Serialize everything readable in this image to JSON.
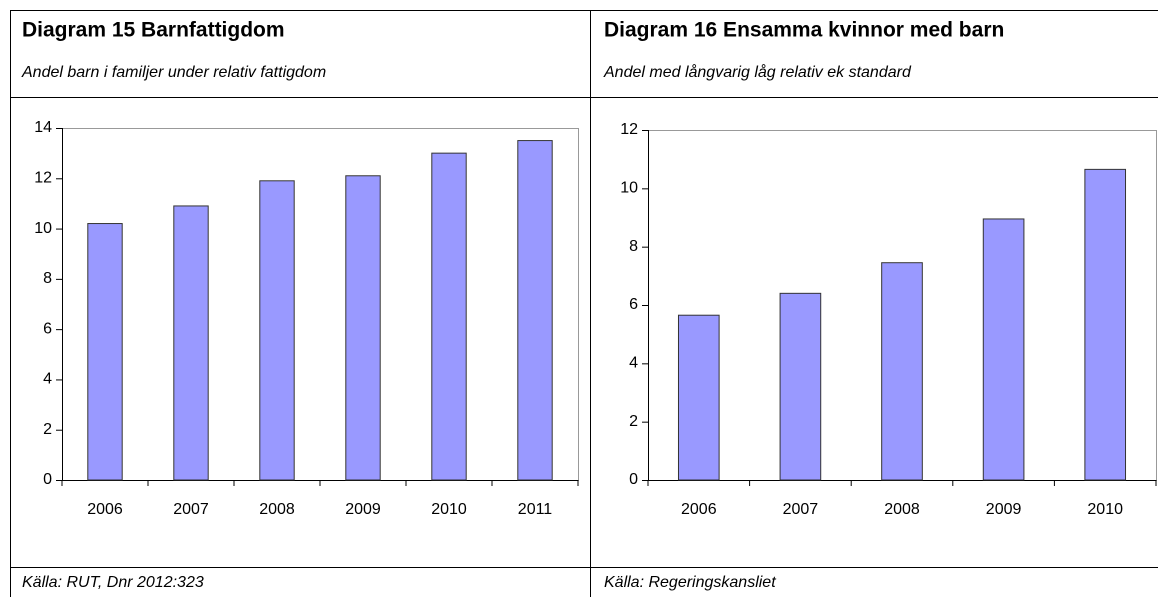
{
  "chart_data": [
    {
      "type": "bar",
      "title": "Diagram 15 Barnfattigdom",
      "subtitle": "Andel barn i familjer under relativ fattigdom",
      "source": "Källa: RUT, Dnr 2012:323",
      "categories": [
        "2006",
        "2007",
        "2008",
        "2009",
        "2010",
        "2011"
      ],
      "values": [
        10.2,
        10.9,
        11.9,
        12.1,
        13.0,
        13.5
      ],
      "color": "#9999ff",
      "ylim": [
        0,
        14
      ],
      "yticks": [
        0,
        2,
        4,
        6,
        8,
        10,
        12,
        14
      ]
    },
    {
      "type": "bar",
      "title": "Diagram 16 Ensamma kvinnor med barn",
      "subtitle": "Andel med långvarig låg relativ ek standard",
      "source": "Källa: Regeringskansliet",
      "categories": [
        "2006",
        "2007",
        "2008",
        "2009",
        "2010"
      ],
      "values": [
        5.65,
        6.4,
        7.45,
        8.95,
        10.65
      ],
      "color": "#9999ff",
      "ylim": [
        0,
        12
      ],
      "yticks": [
        0,
        2,
        4,
        6,
        8,
        10,
        12
      ]
    }
  ]
}
